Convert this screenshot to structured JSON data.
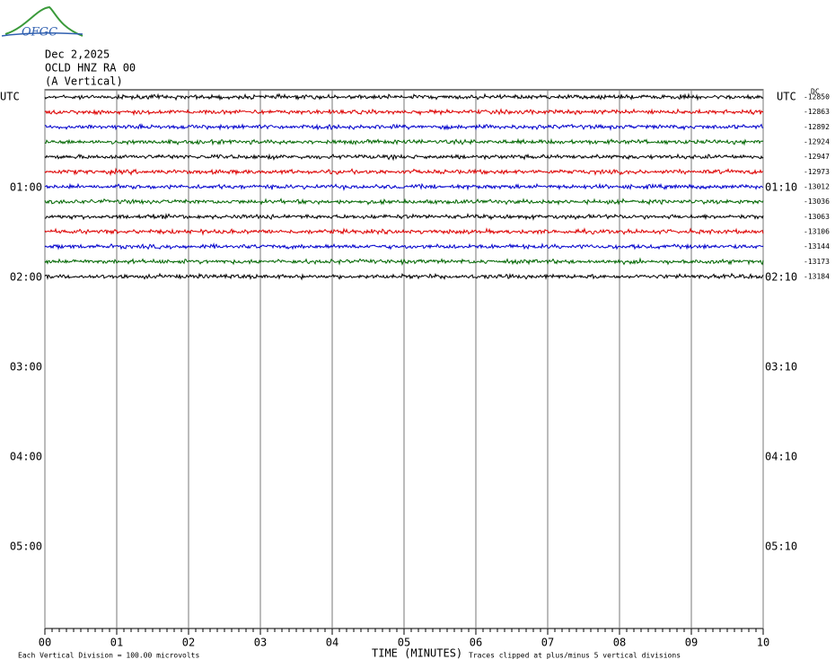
{
  "logo": "OFGC",
  "header": {
    "date": "Dec 2,2025",
    "station": "OCLD HNZ RA 00",
    "component": "(A Vertical)"
  },
  "left_labels": [
    "UTC",
    "01:00",
    "02:00",
    "03:00",
    "04:00",
    "05:00"
  ],
  "right_labels": [
    "UTC",
    "01:10",
    "02:10",
    "03:10",
    "04:10",
    "05:10"
  ],
  "dc_label": "DC",
  "dc_offsets": [
    "-12850",
    "-12863",
    "-12892",
    "-12924",
    "-12947",
    "-12973",
    "-13012",
    "-13036",
    "-13063",
    "-13106",
    "-13144",
    "-13173",
    "-13184"
  ],
  "x_ticks": [
    "00",
    "01",
    "02",
    "03",
    "04",
    "05",
    "06",
    "07",
    "08",
    "09",
    "10"
  ],
  "x_axis_label": "TIME (MINUTES)",
  "footer": {
    "scale": "Each Vertical Division =  100.00 microvolts",
    "clip": "Traces clipped at plus/minus 5 vertical divisions"
  },
  "trace_colors": [
    "#000000",
    "#dd0000",
    "#0000cc",
    "#006600"
  ]
}
